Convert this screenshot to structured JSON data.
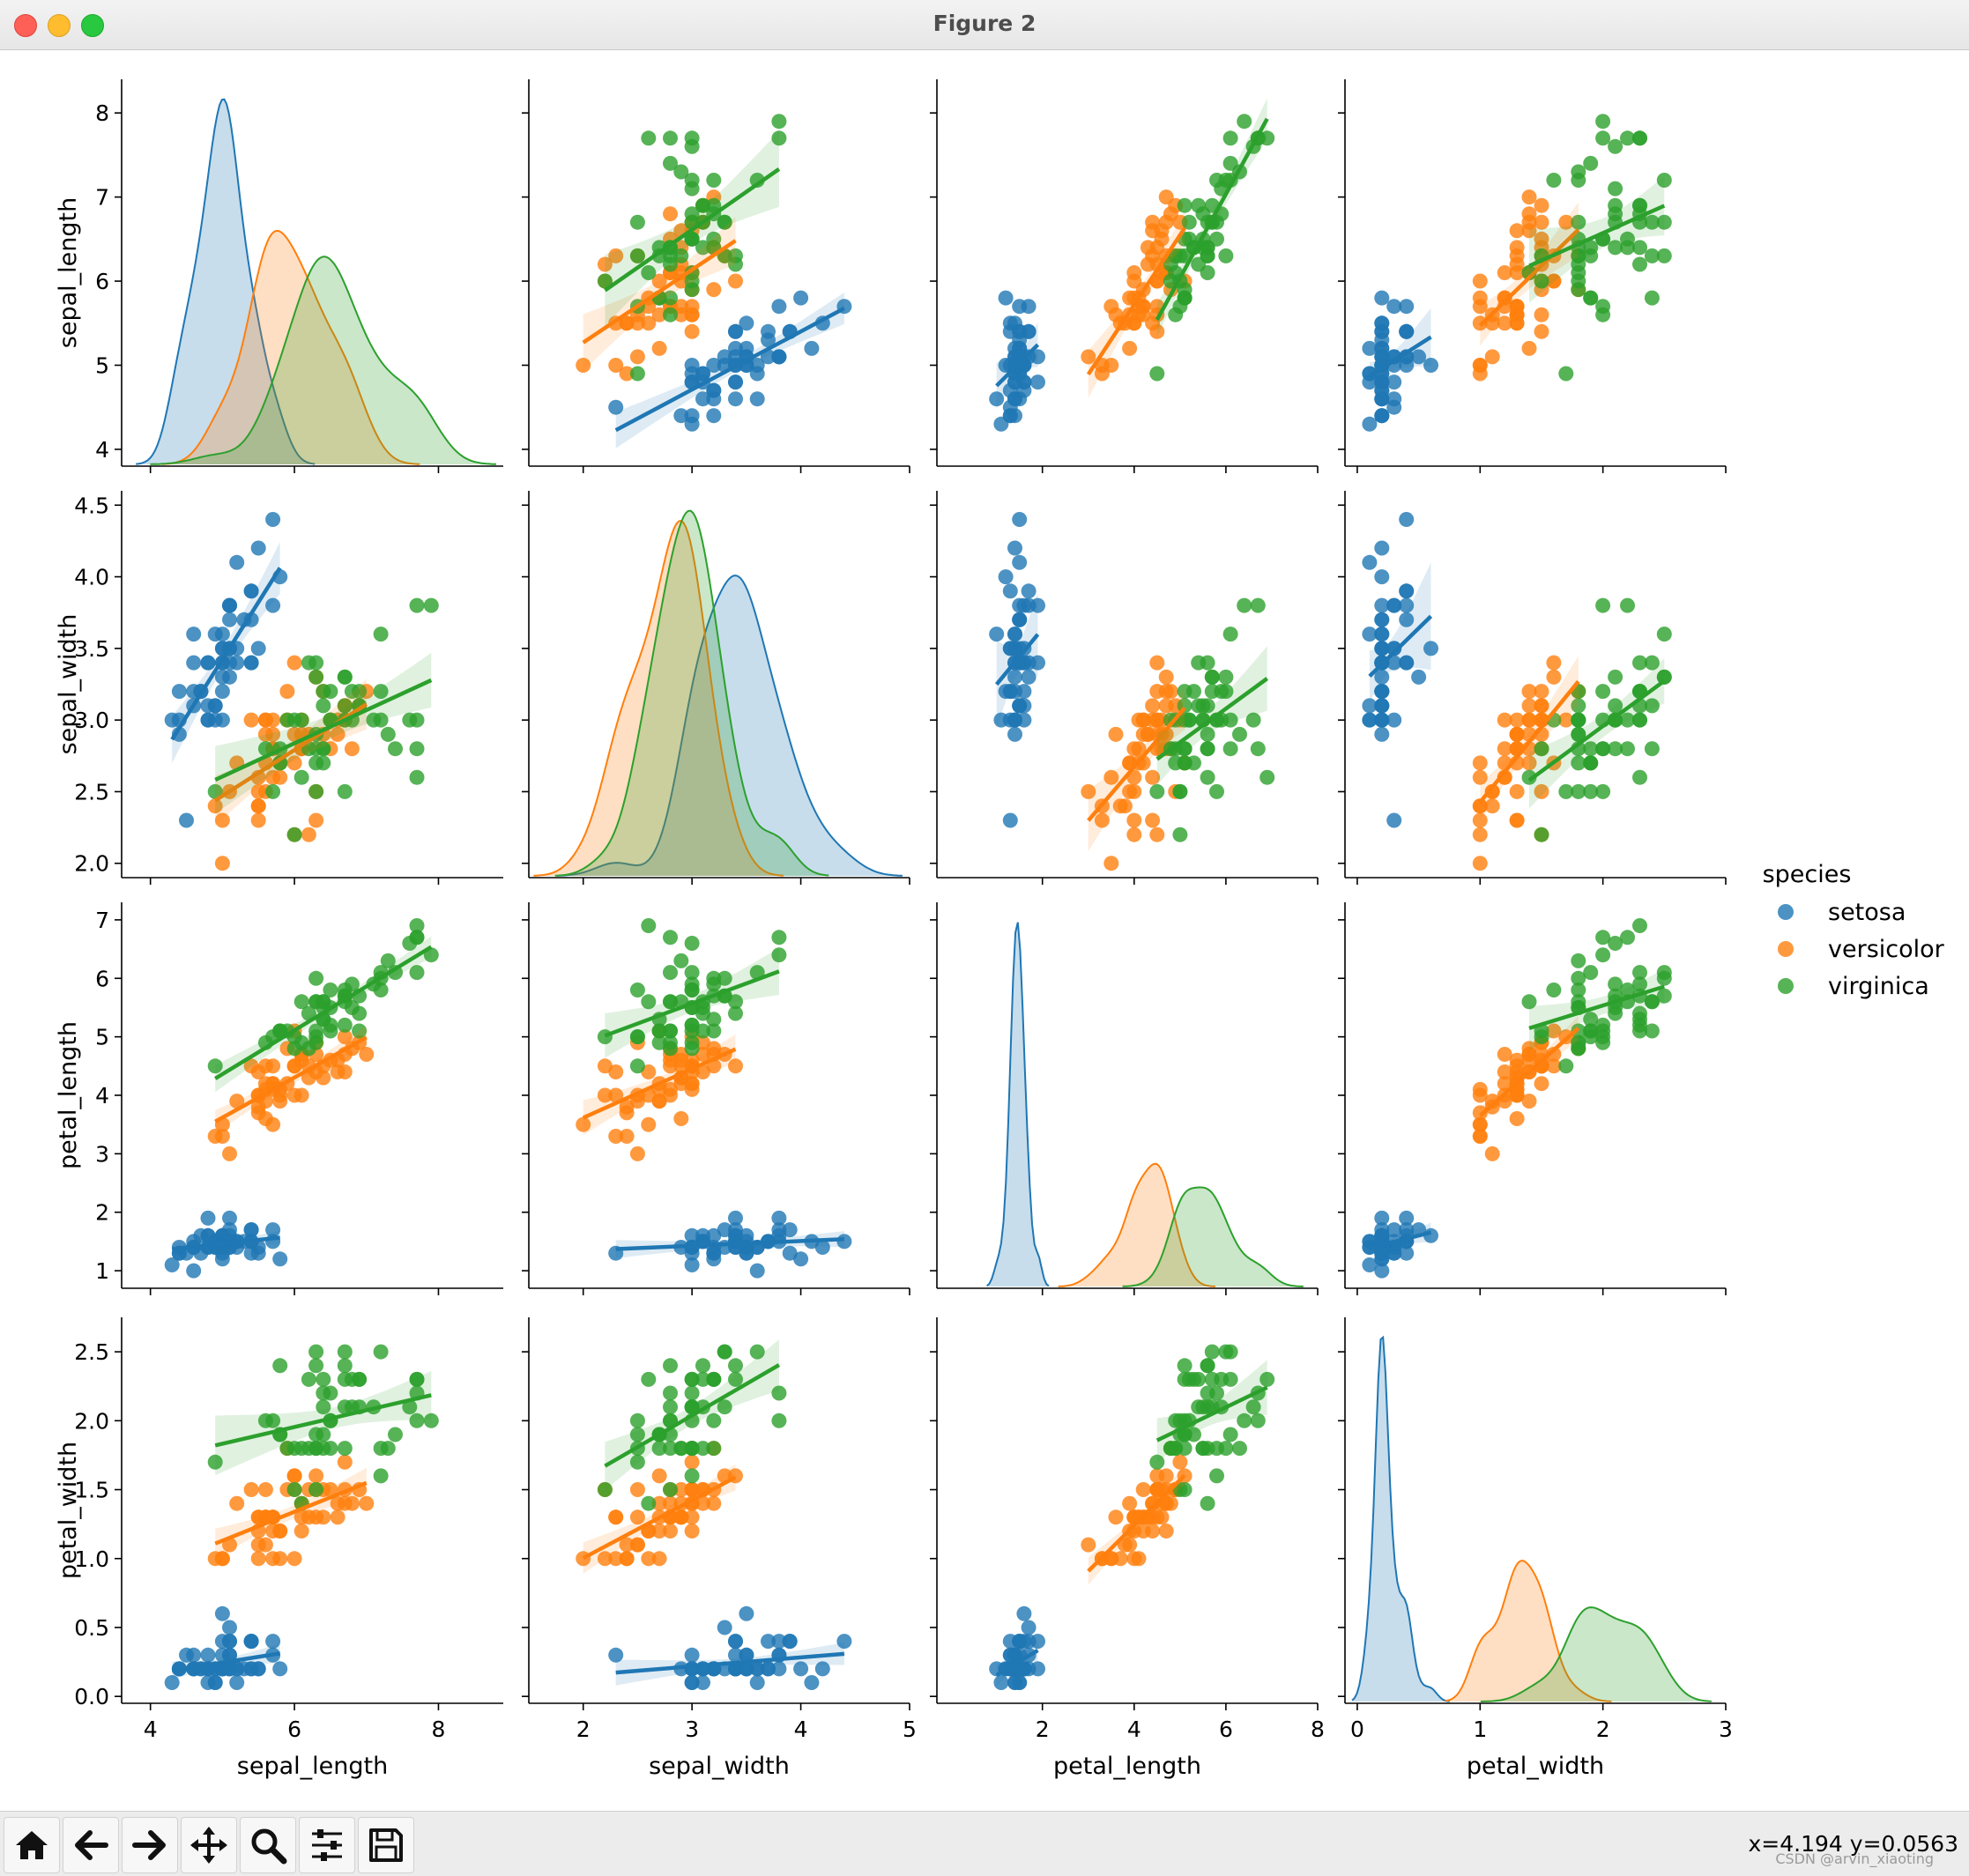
{
  "window": {
    "title": "Figure 2"
  },
  "toolbar": {
    "buttons": [
      {
        "name": "home",
        "icon": "home-icon"
      },
      {
        "name": "back",
        "icon": "arrow-left-icon"
      },
      {
        "name": "forward",
        "icon": "arrow-right-icon"
      },
      {
        "name": "pan",
        "icon": "move-icon"
      },
      {
        "name": "zoom",
        "icon": "magnifier-icon"
      },
      {
        "name": "configure",
        "icon": "sliders-icon"
      },
      {
        "name": "save",
        "icon": "floppy-disk-icon"
      }
    ],
    "coords": "x=4.194 y=0.0563",
    "watermark": "CSDN @arvin_xiaoting"
  },
  "colors": {
    "setosa": "#1f77b4",
    "versicolor": "#ff7f0e",
    "virginica": "#2ca02c"
  },
  "chart_data": {
    "type": "pairplot",
    "variables": [
      "sepal_length",
      "sepal_width",
      "petal_length",
      "petal_width"
    ],
    "hue": "species",
    "legend": {
      "title": "species",
      "entries": [
        "setosa",
        "versicolor",
        "virginica"
      ],
      "position": "right"
    },
    "ranges": {
      "sepal_length": [
        3.6,
        8.9
      ],
      "sepal_width": [
        1.5,
        5.0
      ],
      "petal_length": [
        -0.3,
        8.0
      ],
      "petal_width": [
        -0.1,
        3.0
      ]
    },
    "y_ranges": {
      "sepal_length": [
        3.8,
        8.4
      ],
      "sepal_width": [
        1.9,
        4.6
      ],
      "petal_length": [
        0.7,
        7.3
      ],
      "petal_width": [
        -0.05,
        2.75
      ]
    },
    "ticks": {
      "sepal_length": [
        4,
        6,
        8
      ],
      "sepal_width": [
        2,
        3,
        4,
        5
      ],
      "petal_length": [
        2,
        4,
        6,
        8
      ],
      "petal_width": [
        0,
        1,
        2,
        3
      ]
    },
    "y_ticks": {
      "sepal_length": [
        4,
        5,
        6,
        7,
        8
      ],
      "sepal_width": [
        2.0,
        2.5,
        3.0,
        3.5,
        4.0,
        4.5
      ],
      "petal_length": [
        1,
        2,
        3,
        4,
        5,
        6,
        7
      ],
      "petal_width": [
        0.0,
        0.5,
        1.0,
        1.5,
        2.0,
        2.5
      ]
    },
    "y_tick_labels": {
      "sepal_length": [
        "4",
        "5",
        "6",
        "7",
        "8"
      ],
      "sepal_width": [
        "2.0",
        "2.5",
        "3.0",
        "3.5",
        "4.0",
        "4.5"
      ],
      "petal_length": [
        "1",
        "2",
        "3",
        "4",
        "5",
        "6",
        "7"
      ],
      "petal_width": [
        "0.0",
        "0.5",
        "1.0",
        "1.5",
        "2.0",
        "2.5"
      ]
    },
    "species": {
      "setosa": {
        "sepal_length": [
          5.1,
          4.9,
          4.7,
          4.6,
          5.0,
          5.4,
          4.6,
          5.0,
          4.4,
          4.9,
          5.4,
          4.8,
          4.8,
          4.3,
          5.8,
          5.7,
          5.4,
          5.1,
          5.7,
          5.1,
          5.4,
          5.1,
          4.6,
          5.1,
          4.8,
          5.0,
          5.0,
          5.2,
          5.2,
          4.7,
          4.8,
          5.4,
          5.2,
          5.5,
          4.9,
          5.0,
          5.5,
          4.9,
          4.4,
          5.1,
          5.0,
          4.5,
          4.4,
          5.0,
          5.1,
          4.8,
          5.1,
          4.6,
          5.3,
          5.0
        ],
        "sepal_width": [
          3.5,
          3.0,
          3.2,
          3.1,
          3.6,
          3.9,
          3.4,
          3.4,
          2.9,
          3.1,
          3.7,
          3.4,
          3.0,
          3.0,
          4.0,
          4.4,
          3.9,
          3.5,
          3.8,
          3.8,
          3.4,
          3.7,
          3.6,
          3.3,
          3.4,
          3.0,
          3.4,
          3.5,
          3.4,
          3.2,
          3.1,
          3.4,
          4.1,
          4.2,
          3.1,
          3.2,
          3.5,
          3.6,
          3.0,
          3.4,
          3.5,
          2.3,
          3.2,
          3.5,
          3.8,
          3.0,
          3.8,
          3.2,
          3.7,
          3.3
        ],
        "petal_length": [
          1.4,
          1.4,
          1.3,
          1.5,
          1.4,
          1.7,
          1.4,
          1.5,
          1.4,
          1.5,
          1.5,
          1.6,
          1.4,
          1.1,
          1.2,
          1.5,
          1.3,
          1.4,
          1.7,
          1.5,
          1.7,
          1.5,
          1.0,
          1.7,
          1.9,
          1.6,
          1.6,
          1.5,
          1.4,
          1.6,
          1.6,
          1.5,
          1.5,
          1.4,
          1.5,
          1.2,
          1.3,
          1.4,
          1.3,
          1.5,
          1.3,
          1.3,
          1.3,
          1.6,
          1.9,
          1.4,
          1.6,
          1.4,
          1.5,
          1.4
        ],
        "petal_width": [
          0.2,
          0.2,
          0.2,
          0.2,
          0.2,
          0.4,
          0.3,
          0.2,
          0.2,
          0.1,
          0.2,
          0.2,
          0.1,
          0.1,
          0.2,
          0.4,
          0.4,
          0.3,
          0.3,
          0.3,
          0.2,
          0.4,
          0.2,
          0.5,
          0.2,
          0.2,
          0.4,
          0.2,
          0.2,
          0.2,
          0.2,
          0.4,
          0.1,
          0.2,
          0.2,
          0.2,
          0.2,
          0.1,
          0.2,
          0.2,
          0.3,
          0.3,
          0.2,
          0.6,
          0.4,
          0.3,
          0.2,
          0.2,
          0.2,
          0.2
        ]
      },
      "versicolor": {
        "sepal_length": [
          7.0,
          6.4,
          6.9,
          5.5,
          6.5,
          5.7,
          6.3,
          4.9,
          6.6,
          5.2,
          5.0,
          5.9,
          6.0,
          6.1,
          5.6,
          6.7,
          5.6,
          5.8,
          6.2,
          5.6,
          5.9,
          6.1,
          6.3,
          6.1,
          6.4,
          6.6,
          6.8,
          6.7,
          6.0,
          5.7,
          5.5,
          5.5,
          5.8,
          6.0,
          5.4,
          6.0,
          6.7,
          6.3,
          5.6,
          5.5,
          5.5,
          6.1,
          5.8,
          5.0,
          5.6,
          5.7,
          5.7,
          6.2,
          5.1,
          5.7
        ],
        "sepal_width": [
          3.2,
          3.2,
          3.1,
          2.3,
          2.8,
          2.8,
          3.3,
          2.4,
          2.9,
          2.7,
          2.0,
          3.0,
          2.2,
          2.9,
          2.9,
          3.1,
          3.0,
          2.7,
          2.2,
          2.5,
          3.2,
          2.8,
          2.5,
          2.8,
          2.9,
          3.0,
          2.8,
          3.0,
          2.9,
          2.6,
          2.4,
          2.4,
          2.7,
          2.7,
          3.0,
          3.4,
          3.1,
          2.3,
          3.0,
          2.5,
          2.6,
          3.0,
          2.6,
          2.3,
          2.7,
          3.0,
          2.9,
          2.9,
          2.5,
          2.8
        ],
        "petal_length": [
          4.7,
          4.5,
          4.9,
          4.0,
          4.6,
          4.5,
          4.7,
          3.3,
          4.6,
          3.9,
          3.5,
          4.2,
          4.0,
          4.7,
          3.6,
          4.4,
          4.5,
          4.1,
          4.5,
          3.9,
          4.8,
          4.0,
          4.9,
          4.7,
          4.3,
          4.4,
          4.8,
          5.0,
          4.5,
          3.5,
          3.8,
          3.7,
          3.9,
          5.1,
          4.5,
          4.5,
          4.7,
          4.4,
          4.1,
          4.0,
          4.4,
          4.6,
          4.0,
          3.3,
          4.2,
          4.2,
          4.2,
          4.3,
          3.0,
          4.1
        ],
        "petal_width": [
          1.4,
          1.5,
          1.5,
          1.3,
          1.5,
          1.3,
          1.6,
          1.0,
          1.3,
          1.4,
          1.0,
          1.5,
          1.0,
          1.4,
          1.3,
          1.4,
          1.5,
          1.0,
          1.5,
          1.1,
          1.8,
          1.3,
          1.5,
          1.2,
          1.3,
          1.4,
          1.4,
          1.7,
          1.5,
          1.0,
          1.1,
          1.0,
          1.2,
          1.6,
          1.5,
          1.6,
          1.5,
          1.3,
          1.3,
          1.3,
          1.2,
          1.4,
          1.2,
          1.0,
          1.3,
          1.2,
          1.3,
          1.3,
          1.1,
          1.3
        ]
      },
      "virginica": {
        "sepal_length": [
          6.3,
          5.8,
          7.1,
          6.3,
          6.5,
          7.6,
          4.9,
          7.3,
          6.7,
          7.2,
          6.5,
          6.4,
          6.8,
          5.7,
          5.8,
          6.4,
          6.5,
          7.7,
          7.7,
          6.0,
          6.9,
          5.6,
          7.7,
          6.3,
          6.7,
          7.2,
          6.2,
          6.1,
          6.4,
          7.2,
          7.4,
          7.9,
          6.4,
          6.3,
          6.1,
          7.7,
          6.3,
          6.4,
          6.0,
          6.9,
          6.7,
          6.9,
          5.8,
          6.8,
          6.7,
          6.7,
          6.3,
          6.5,
          6.2,
          5.9
        ],
        "sepal_width": [
          3.3,
          2.7,
          3.0,
          2.9,
          3.0,
          3.0,
          2.5,
          2.9,
          2.5,
          3.6,
          3.2,
          2.7,
          3.0,
          2.5,
          2.8,
          3.2,
          3.0,
          3.8,
          2.6,
          2.2,
          3.2,
          2.8,
          2.8,
          2.7,
          3.3,
          3.2,
          2.8,
          3.0,
          2.8,
          3.0,
          2.8,
          3.8,
          2.8,
          2.8,
          2.6,
          3.0,
          3.4,
          3.1,
          3.0,
          3.1,
          3.1,
          3.1,
          2.7,
          3.2,
          3.3,
          3.0,
          2.5,
          3.0,
          3.4,
          3.0
        ],
        "petal_length": [
          6.0,
          5.1,
          5.9,
          5.6,
          5.8,
          6.6,
          4.5,
          6.3,
          5.8,
          6.1,
          5.1,
          5.3,
          5.5,
          5.0,
          5.1,
          5.3,
          5.5,
          6.7,
          6.9,
          5.0,
          5.7,
          4.9,
          6.7,
          4.9,
          5.7,
          6.0,
          4.8,
          4.9,
          5.6,
          5.8,
          6.1,
          6.4,
          5.6,
          5.1,
          5.6,
          6.1,
          5.6,
          5.5,
          4.8,
          5.4,
          5.6,
          5.1,
          5.1,
          5.9,
          5.7,
          5.2,
          5.0,
          5.2,
          5.4,
          5.1
        ],
        "petal_width": [
          2.5,
          1.9,
          2.1,
          1.8,
          2.2,
          2.1,
          1.7,
          1.8,
          1.8,
          2.5,
          2.0,
          1.9,
          2.1,
          2.0,
          2.4,
          2.3,
          1.8,
          2.2,
          2.3,
          1.5,
          2.3,
          2.0,
          2.0,
          1.8,
          2.1,
          1.8,
          1.8,
          1.8,
          2.1,
          1.6,
          1.9,
          2.0,
          2.2,
          1.5,
          1.4,
          2.3,
          2.4,
          1.8,
          1.8,
          2.1,
          2.4,
          2.3,
          1.9,
          2.3,
          2.5,
          2.3,
          1.9,
          2.0,
          2.3,
          1.8
        ]
      }
    }
  }
}
